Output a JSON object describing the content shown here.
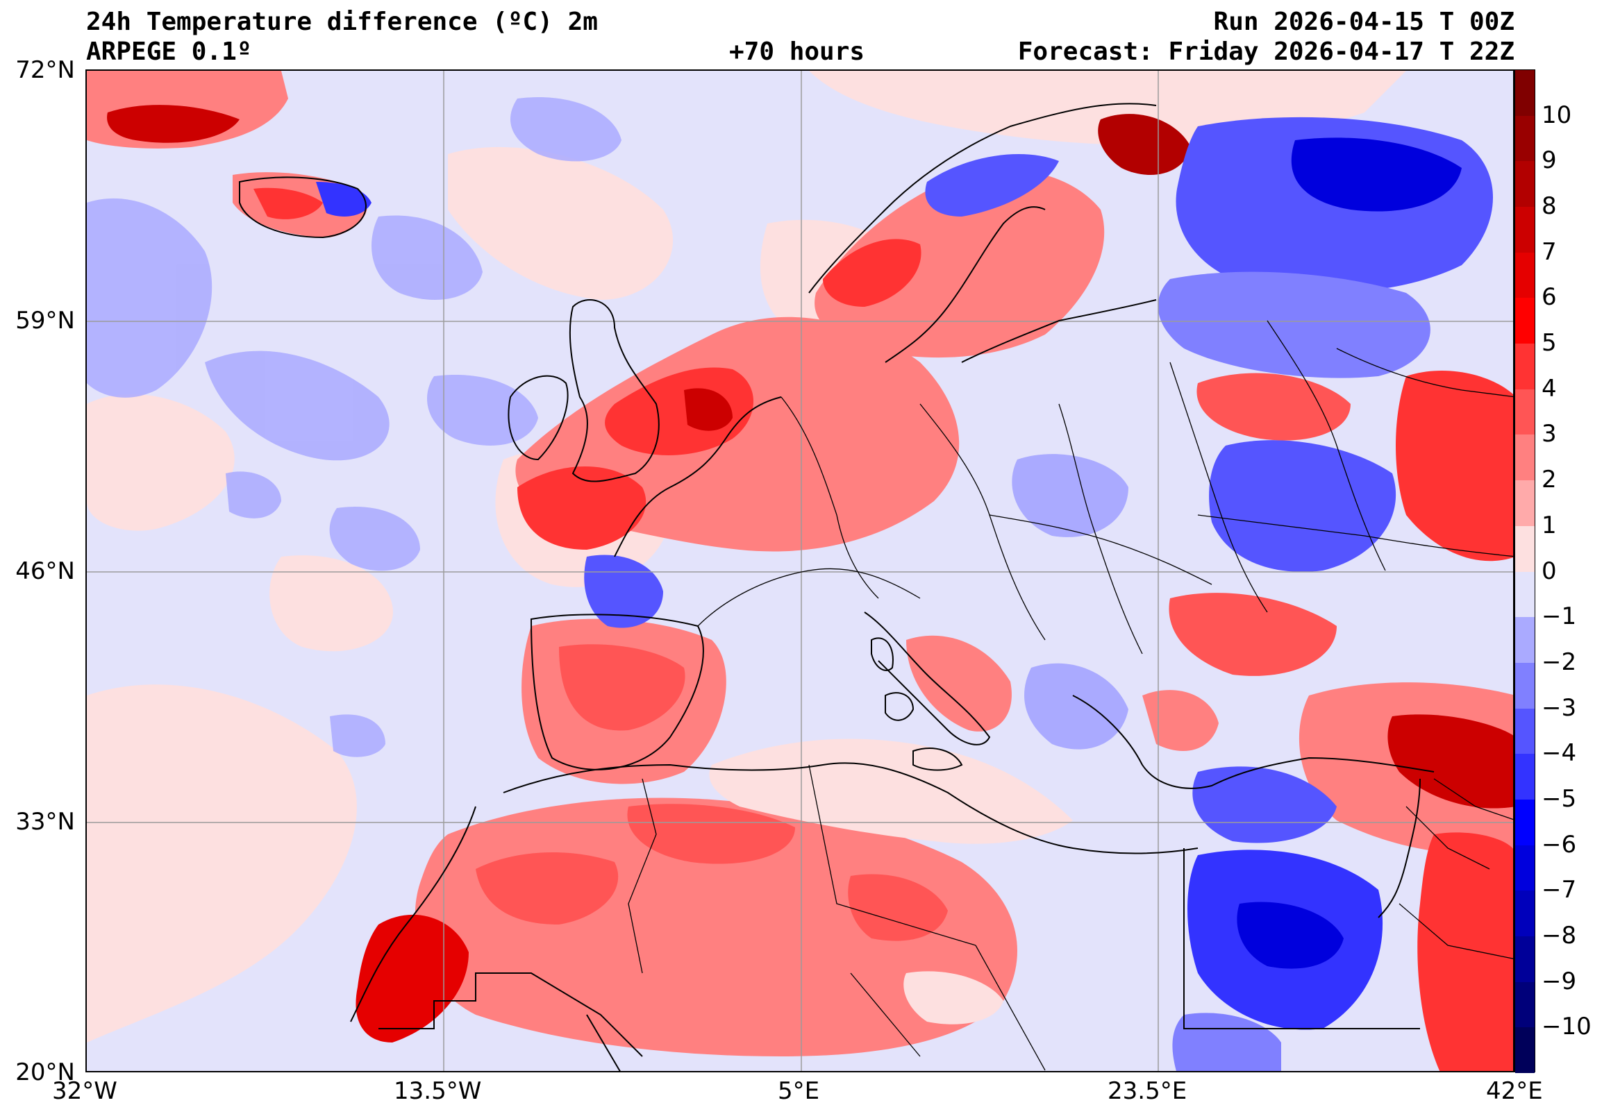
{
  "header": {
    "title": "24h Temperature difference (ºC) 2m",
    "model": "ARPEGE 0.1º",
    "lead_time": "+70 hours",
    "run": "Run 2026-04-15 T 00Z",
    "forecast": "Forecast: Friday 2026-04-17 T 22Z"
  },
  "axes": {
    "lat_labels": [
      "72°N",
      "59°N",
      "46°N",
      "33°N",
      "20°N"
    ],
    "lon_labels": [
      "32°W",
      "13.5°W",
      "5°E",
      "23.5°E",
      "42°E"
    ]
  },
  "colorbar": {
    "ticks": [
      "10",
      "9",
      "8",
      "7",
      "6",
      "5",
      "4",
      "3",
      "2",
      "1",
      "0",
      "−1",
      "−2",
      "−3",
      "−4",
      "−5",
      "−6",
      "−7",
      "−8",
      "−9",
      "−10"
    ],
    "colors_top_to_bottom": [
      "#800000",
      "#990000",
      "#b20000",
      "#cc0000",
      "#e50000",
      "#ff0000",
      "#ff3333",
      "#ff5555",
      "#ff8080",
      "#ffaaaa",
      "#fde0e0",
      "#e3e3fb",
      "#aaaaff",
      "#8080ff",
      "#5555ff",
      "#3333ff",
      "#0000ff",
      "#0000dd",
      "#0000bb",
      "#000099",
      "#00007a",
      "#00005a"
    ]
  },
  "map": {
    "domain": {
      "lat_min": 20,
      "lat_max": 72,
      "lon_min": -32,
      "lon_max": 42
    },
    "gridlines": true,
    "features": "Temperature difference field over Europe, North Africa, Middle East"
  }
}
